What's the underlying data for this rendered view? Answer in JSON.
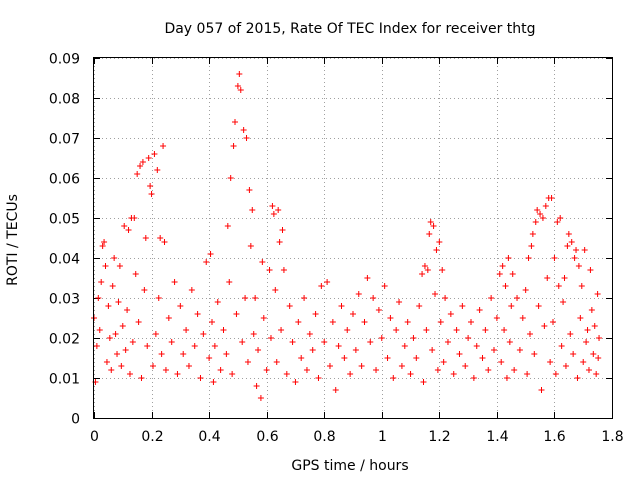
{
  "chart_data": {
    "type": "scatter",
    "title": "Day 057 of 2015, Rate Of TEC Index for receiver thtg",
    "xlabel": "GPS time / hours",
    "ylabel": "ROTI / TECUs",
    "xlim": [
      0,
      1.8
    ],
    "ylim": [
      0,
      0.09
    ],
    "grid": true,
    "marker": "+",
    "marker_color": "#ff0000",
    "x_ticks": [
      {
        "value": 0,
        "label": "0"
      },
      {
        "value": 0.2,
        "label": "0.2"
      },
      {
        "value": 0.4,
        "label": "0.4"
      },
      {
        "value": 0.6,
        "label": "0.6"
      },
      {
        "value": 0.8,
        "label": "0.8"
      },
      {
        "value": 1.0,
        "label": "1"
      },
      {
        "value": 1.2,
        "label": "1.2"
      },
      {
        "value": 1.4,
        "label": "1.4"
      },
      {
        "value": 1.6,
        "label": "1.6"
      },
      {
        "value": 1.8,
        "label": "1.8"
      }
    ],
    "y_ticks": [
      {
        "value": 0,
        "label": "0"
      },
      {
        "value": 0.01,
        "label": "0.01"
      },
      {
        "value": 0.02,
        "label": "0.02"
      },
      {
        "value": 0.03,
        "label": "0.03"
      },
      {
        "value": 0.04,
        "label": "0.04"
      },
      {
        "value": 0.05,
        "label": "0.05"
      },
      {
        "value": 0.06,
        "label": "0.06"
      },
      {
        "value": 0.07,
        "label": "0.07"
      },
      {
        "value": 0.08,
        "label": "0.08"
      },
      {
        "value": 0.09,
        "label": "0.09"
      }
    ],
    "series": [
      {
        "name": "ROTI",
        "points": [
          [
            0.0,
            0.025
          ],
          [
            0.005,
            0.009
          ],
          [
            0.01,
            0.018
          ],
          [
            0.015,
            0.03
          ],
          [
            0.02,
            0.022
          ],
          [
            0.025,
            0.034
          ],
          [
            0.03,
            0.043
          ],
          [
            0.035,
            0.044
          ],
          [
            0.04,
            0.038
          ],
          [
            0.045,
            0.014
          ],
          [
            0.05,
            0.028
          ],
          [
            0.055,
            0.02
          ],
          [
            0.06,
            0.012
          ],
          [
            0.065,
            0.033
          ],
          [
            0.07,
            0.04
          ],
          [
            0.075,
            0.021
          ],
          [
            0.08,
            0.016
          ],
          [
            0.085,
            0.029
          ],
          [
            0.09,
            0.038
          ],
          [
            0.095,
            0.013
          ],
          [
            0.1,
            0.023
          ],
          [
            0.105,
            0.048
          ],
          [
            0.11,
            0.017
          ],
          [
            0.115,
            0.027
          ],
          [
            0.12,
            0.047
          ],
          [
            0.125,
            0.011
          ],
          [
            0.13,
            0.05
          ],
          [
            0.135,
            0.019
          ],
          [
            0.14,
            0.05
          ],
          [
            0.145,
            0.036
          ],
          [
            0.15,
            0.061
          ],
          [
            0.155,
            0.024
          ],
          [
            0.16,
            0.063
          ],
          [
            0.165,
            0.01
          ],
          [
            0.17,
            0.064
          ],
          [
            0.175,
            0.032
          ],
          [
            0.18,
            0.045
          ],
          [
            0.185,
            0.018
          ],
          [
            0.19,
            0.065
          ],
          [
            0.195,
            0.058
          ],
          [
            0.2,
            0.056
          ],
          [
            0.205,
            0.013
          ],
          [
            0.21,
            0.066
          ],
          [
            0.215,
            0.021
          ],
          [
            0.22,
            0.062
          ],
          [
            0.225,
            0.03
          ],
          [
            0.23,
            0.045
          ],
          [
            0.235,
            0.016
          ],
          [
            0.24,
            0.068
          ],
          [
            0.245,
            0.044
          ],
          [
            0.25,
            0.012
          ],
          [
            0.26,
            0.025
          ],
          [
            0.27,
            0.019
          ],
          [
            0.28,
            0.034
          ],
          [
            0.29,
            0.011
          ],
          [
            0.3,
            0.028
          ],
          [
            0.31,
            0.016
          ],
          [
            0.32,
            0.022
          ],
          [
            0.33,
            0.013
          ],
          [
            0.34,
            0.032
          ],
          [
            0.35,
            0.018
          ],
          [
            0.36,
            0.026
          ],
          [
            0.37,
            0.01
          ],
          [
            0.38,
            0.021
          ],
          [
            0.39,
            0.039
          ],
          [
            0.4,
            0.015
          ],
          [
            0.405,
            0.041
          ],
          [
            0.41,
            0.024
          ],
          [
            0.415,
            0.009
          ],
          [
            0.42,
            0.018
          ],
          [
            0.43,
            0.029
          ],
          [
            0.44,
            0.012
          ],
          [
            0.45,
            0.022
          ],
          [
            0.46,
            0.016
          ],
          [
            0.465,
            0.048
          ],
          [
            0.47,
            0.034
          ],
          [
            0.475,
            0.06
          ],
          [
            0.48,
            0.011
          ],
          [
            0.485,
            0.068
          ],
          [
            0.49,
            0.074
          ],
          [
            0.495,
            0.026
          ],
          [
            0.5,
            0.083
          ],
          [
            0.505,
            0.086
          ],
          [
            0.51,
            0.082
          ],
          [
            0.515,
            0.019
          ],
          [
            0.52,
            0.072
          ],
          [
            0.525,
            0.03
          ],
          [
            0.53,
            0.07
          ],
          [
            0.535,
            0.014
          ],
          [
            0.54,
            0.057
          ],
          [
            0.545,
            0.043
          ],
          [
            0.55,
            0.052
          ],
          [
            0.555,
            0.021
          ],
          [
            0.56,
            0.03
          ],
          [
            0.565,
            0.008
          ],
          [
            0.57,
            0.017
          ],
          [
            0.58,
            0.005
          ],
          [
            0.585,
            0.039
          ],
          [
            0.59,
            0.025
          ],
          [
            0.6,
            0.012
          ],
          [
            0.61,
            0.037
          ],
          [
            0.615,
            0.02
          ],
          [
            0.62,
            0.053
          ],
          [
            0.625,
            0.051
          ],
          [
            0.63,
            0.032
          ],
          [
            0.635,
            0.014
          ],
          [
            0.64,
            0.052
          ],
          [
            0.645,
            0.044
          ],
          [
            0.65,
            0.022
          ],
          [
            0.655,
            0.047
          ],
          [
            0.66,
            0.037
          ],
          [
            0.67,
            0.011
          ],
          [
            0.68,
            0.028
          ],
          [
            0.69,
            0.019
          ],
          [
            0.7,
            0.009
          ],
          [
            0.71,
            0.024
          ],
          [
            0.72,
            0.015
          ],
          [
            0.73,
            0.03
          ],
          [
            0.74,
            0.012
          ],
          [
            0.75,
            0.021
          ],
          [
            0.76,
            0.017
          ],
          [
            0.77,
            0.026
          ],
          [
            0.78,
            0.01
          ],
          [
            0.79,
            0.033
          ],
          [
            0.8,
            0.019
          ],
          [
            0.81,
            0.034
          ],
          [
            0.82,
            0.013
          ],
          [
            0.83,
            0.024
          ],
          [
            0.84,
            0.007
          ],
          [
            0.85,
            0.018
          ],
          [
            0.86,
            0.028
          ],
          [
            0.87,
            0.015
          ],
          [
            0.88,
            0.022
          ],
          [
            0.89,
            0.011
          ],
          [
            0.9,
            0.026
          ],
          [
            0.91,
            0.017
          ],
          [
            0.92,
            0.031
          ],
          [
            0.93,
            0.013
          ],
          [
            0.94,
            0.024
          ],
          [
            0.95,
            0.035
          ],
          [
            0.96,
            0.019
          ],
          [
            0.97,
            0.03
          ],
          [
            0.98,
            0.012
          ],
          [
            0.99,
            0.027
          ],
          [
            1.0,
            0.02
          ],
          [
            1.01,
            0.033
          ],
          [
            1.02,
            0.015
          ],
          [
            1.03,
            0.025
          ],
          [
            1.04,
            0.01
          ],
          [
            1.05,
            0.022
          ],
          [
            1.06,
            0.029
          ],
          [
            1.07,
            0.013
          ],
          [
            1.08,
            0.018
          ],
          [
            1.09,
            0.024
          ],
          [
            1.1,
            0.011
          ],
          [
            1.11,
            0.02
          ],
          [
            1.12,
            0.015
          ],
          [
            1.13,
            0.028
          ],
          [
            1.14,
            0.036
          ],
          [
            1.145,
            0.009
          ],
          [
            1.15,
            0.038
          ],
          [
            1.155,
            0.022
          ],
          [
            1.16,
            0.037
          ],
          [
            1.165,
            0.046
          ],
          [
            1.17,
            0.049
          ],
          [
            1.175,
            0.017
          ],
          [
            1.18,
            0.048
          ],
          [
            1.185,
            0.031
          ],
          [
            1.19,
            0.042
          ],
          [
            1.195,
            0.012
          ],
          [
            1.2,
            0.044
          ],
          [
            1.205,
            0.024
          ],
          [
            1.21,
            0.037
          ],
          [
            1.215,
            0.014
          ],
          [
            1.22,
            0.03
          ],
          [
            1.23,
            0.019
          ],
          [
            1.24,
            0.026
          ],
          [
            1.25,
            0.011
          ],
          [
            1.26,
            0.022
          ],
          [
            1.27,
            0.016
          ],
          [
            1.28,
            0.028
          ],
          [
            1.29,
            0.013
          ],
          [
            1.3,
            0.02
          ],
          [
            1.31,
            0.024
          ],
          [
            1.32,
            0.01
          ],
          [
            1.33,
            0.018
          ],
          [
            1.34,
            0.027
          ],
          [
            1.35,
            0.015
          ],
          [
            1.36,
            0.022
          ],
          [
            1.37,
            0.012
          ],
          [
            1.38,
            0.03
          ],
          [
            1.39,
            0.017
          ],
          [
            1.4,
            0.025
          ],
          [
            1.41,
            0.036
          ],
          [
            1.415,
            0.014
          ],
          [
            1.42,
            0.038
          ],
          [
            1.425,
            0.022
          ],
          [
            1.43,
            0.033
          ],
          [
            1.435,
            0.01
          ],
          [
            1.44,
            0.04
          ],
          [
            1.445,
            0.019
          ],
          [
            1.45,
            0.028
          ],
          [
            1.455,
            0.036
          ],
          [
            1.46,
            0.012
          ],
          [
            1.47,
            0.03
          ],
          [
            1.48,
            0.017
          ],
          [
            1.49,
            0.025
          ],
          [
            1.5,
            0.032
          ],
          [
            1.505,
            0.011
          ],
          [
            1.51,
            0.04
          ],
          [
            1.515,
            0.021
          ],
          [
            1.52,
            0.043
          ],
          [
            1.525,
            0.046
          ],
          [
            1.53,
            0.016
          ],
          [
            1.535,
            0.049
          ],
          [
            1.54,
            0.052
          ],
          [
            1.545,
            0.028
          ],
          [
            1.55,
            0.051
          ],
          [
            1.555,
            0.007
          ],
          [
            1.56,
            0.05
          ],
          [
            1.565,
            0.023
          ],
          [
            1.57,
            0.053
          ],
          [
            1.575,
            0.035
          ],
          [
            1.58,
            0.055
          ],
          [
            1.585,
            0.014
          ],
          [
            1.59,
            0.055
          ],
          [
            1.595,
            0.024
          ],
          [
            1.6,
            0.04
          ],
          [
            1.605,
            0.011
          ],
          [
            1.61,
            0.049
          ],
          [
            1.615,
            0.033
          ],
          [
            1.62,
            0.05
          ],
          [
            1.625,
            0.018
          ],
          [
            1.63,
            0.029
          ],
          [
            1.635,
            0.035
          ],
          [
            1.64,
            0.013
          ],
          [
            1.645,
            0.043
          ],
          [
            1.65,
            0.046
          ],
          [
            1.655,
            0.021
          ],
          [
            1.66,
            0.044
          ],
          [
            1.665,
            0.016
          ],
          [
            1.67,
            0.04
          ],
          [
            1.675,
            0.042
          ],
          [
            1.68,
            0.01
          ],
          [
            1.685,
            0.038
          ],
          [
            1.69,
            0.025
          ],
          [
            1.695,
            0.033
          ],
          [
            1.7,
            0.014
          ],
          [
            1.705,
            0.042
          ],
          [
            1.71,
            0.019
          ],
          [
            1.715,
            0.022
          ],
          [
            1.72,
            0.012
          ],
          [
            1.725,
            0.037
          ],
          [
            1.73,
            0.027
          ],
          [
            1.735,
            0.016
          ],
          [
            1.74,
            0.023
          ],
          [
            1.745,
            0.011
          ],
          [
            1.75,
            0.031
          ],
          [
            1.752,
            0.015
          ],
          [
            1.755,
            0.02
          ]
        ]
      }
    ]
  }
}
